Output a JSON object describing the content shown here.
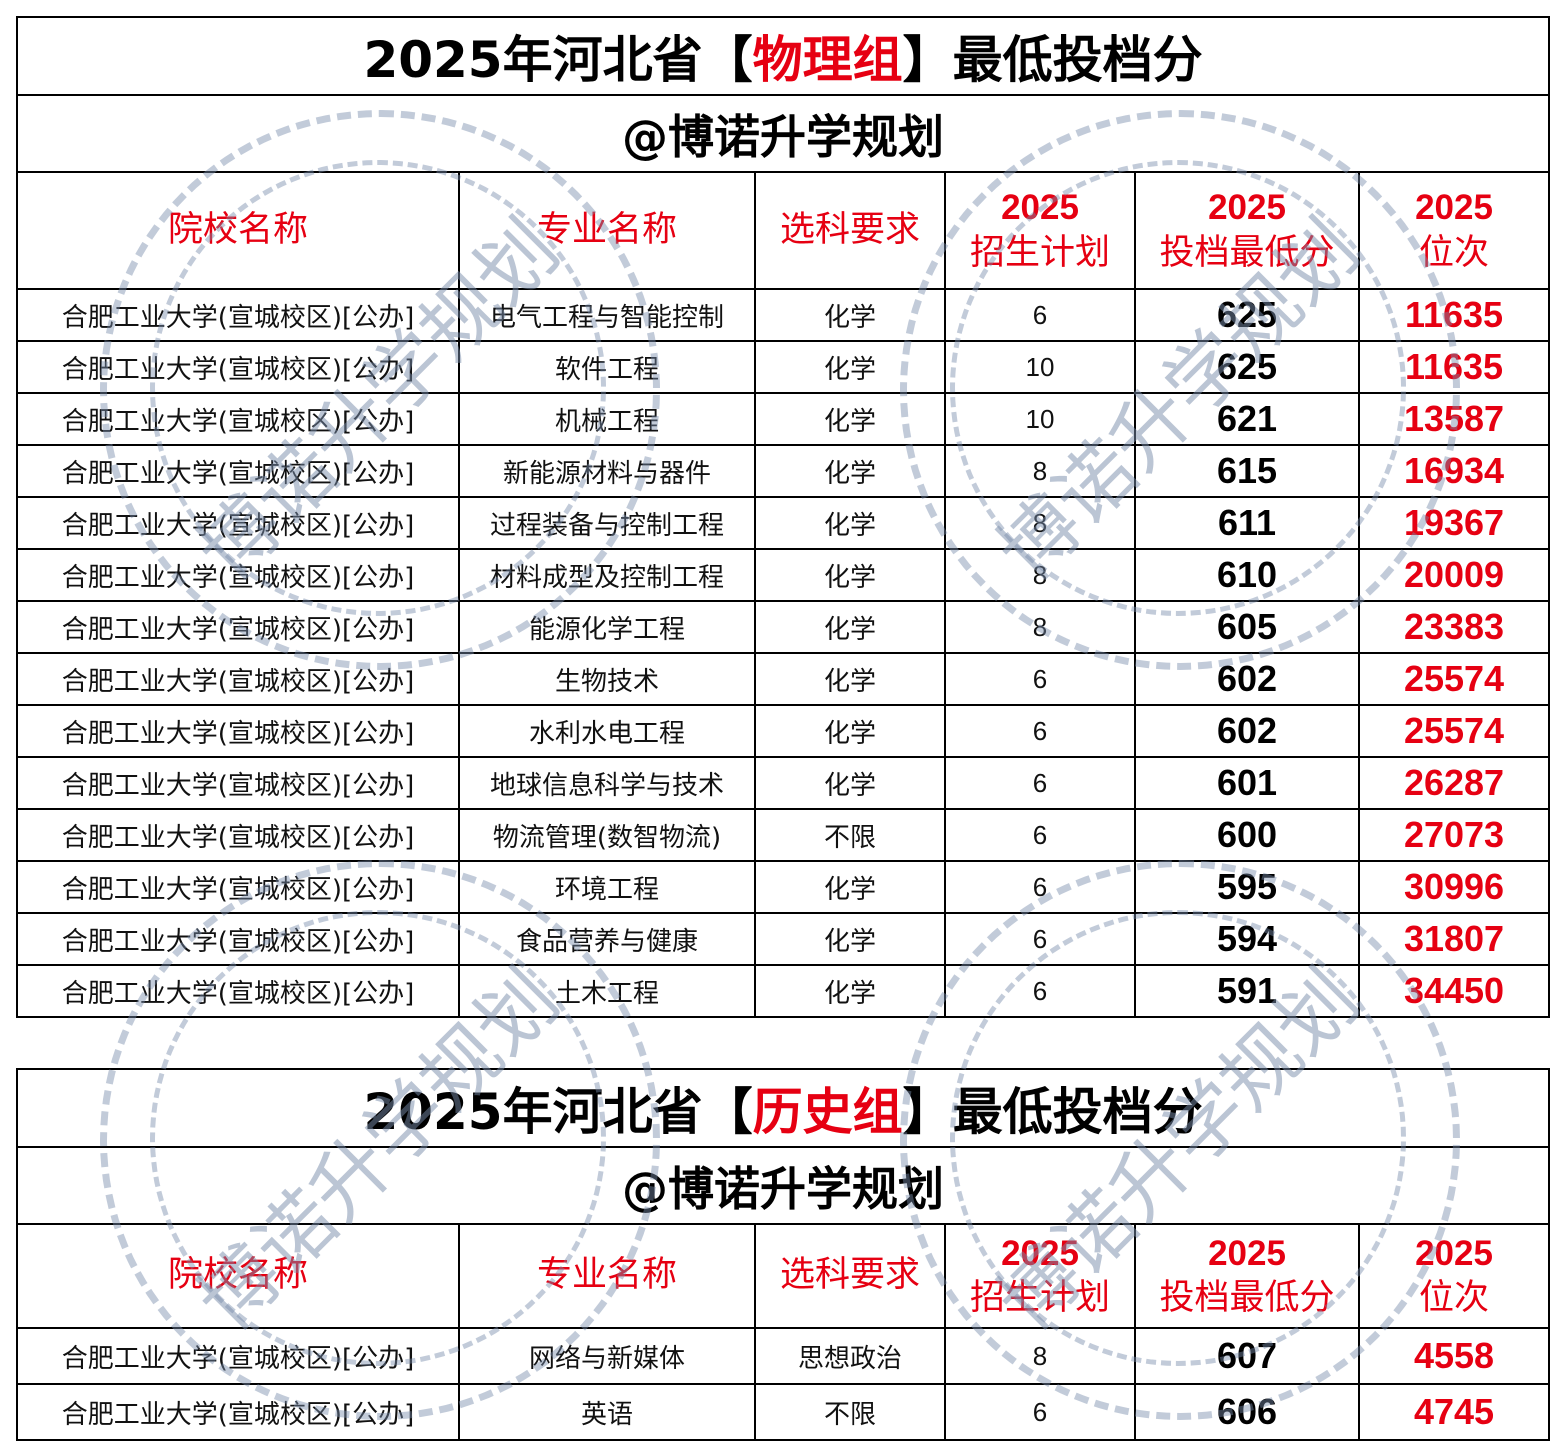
{
  "watermark": {
    "text": "博诺升学规划",
    "color": "#8c9ab0"
  },
  "colors": {
    "accent": "#e60012",
    "text": "#000000"
  },
  "tables": [
    {
      "title_pre": "2025年河北省【",
      "title_hl": "物理组",
      "title_post": "】最低投档分",
      "subtitle": "@博诺升学规划",
      "headers": [
        "院校名称",
        "专业名称",
        "选科要求",
        [
          "2025",
          "招生计划"
        ],
        [
          "2025",
          "投档最低分"
        ],
        [
          "2025",
          "位次"
        ]
      ],
      "rows": [
        [
          "合肥工业大学(宣城校区)[公办]",
          "电气工程与智能控制",
          "化学",
          "6",
          "625",
          "11635"
        ],
        [
          "合肥工业大学(宣城校区)[公办]",
          "软件工程",
          "化学",
          "10",
          "625",
          "11635"
        ],
        [
          "合肥工业大学(宣城校区)[公办]",
          "机械工程",
          "化学",
          "10",
          "621",
          "13587"
        ],
        [
          "合肥工业大学(宣城校区)[公办]",
          "新能源材料与器件",
          "化学",
          "8",
          "615",
          "16934"
        ],
        [
          "合肥工业大学(宣城校区)[公办]",
          "过程装备与控制工程",
          "化学",
          "8",
          "611",
          "19367"
        ],
        [
          "合肥工业大学(宣城校区)[公办]",
          "材料成型及控制工程",
          "化学",
          "8",
          "610",
          "20009"
        ],
        [
          "合肥工业大学(宣城校区)[公办]",
          "能源化学工程",
          "化学",
          "8",
          "605",
          "23383"
        ],
        [
          "合肥工业大学(宣城校区)[公办]",
          "生物技术",
          "化学",
          "6",
          "602",
          "25574"
        ],
        [
          "合肥工业大学(宣城校区)[公办]",
          "水利水电工程",
          "化学",
          "6",
          "602",
          "25574"
        ],
        [
          "合肥工业大学(宣城校区)[公办]",
          "地球信息科学与技术",
          "化学",
          "6",
          "601",
          "26287"
        ],
        [
          "合肥工业大学(宣城校区)[公办]",
          "物流管理(数智物流)",
          "不限",
          "6",
          "600",
          "27073"
        ],
        [
          "合肥工业大学(宣城校区)[公办]",
          "环境工程",
          "化学",
          "6",
          "595",
          "30996"
        ],
        [
          "合肥工业大学(宣城校区)[公办]",
          "食品营养与健康",
          "化学",
          "6",
          "594",
          "31807"
        ],
        [
          "合肥工业大学(宣城校区)[公办]",
          "土木工程",
          "化学",
          "6",
          "591",
          "34450"
        ]
      ]
    },
    {
      "title_pre": "2025年河北省【",
      "title_hl": "历史组",
      "title_post": "】最低投档分",
      "subtitle": "@博诺升学规划",
      "headers": [
        "院校名称",
        "专业名称",
        "选科要求",
        [
          "2025",
          "招生计划"
        ],
        [
          "2025",
          "投档最低分"
        ],
        [
          "2025",
          "位次"
        ]
      ],
      "rows": [
        [
          "合肥工业大学(宣城校区)[公办]",
          "网络与新媒体",
          "思想政治",
          "8",
          "607",
          "4558"
        ],
        [
          "合肥工业大学(宣城校区)[公办]",
          "英语",
          "不限",
          "6",
          "606",
          "4745"
        ]
      ]
    }
  ]
}
